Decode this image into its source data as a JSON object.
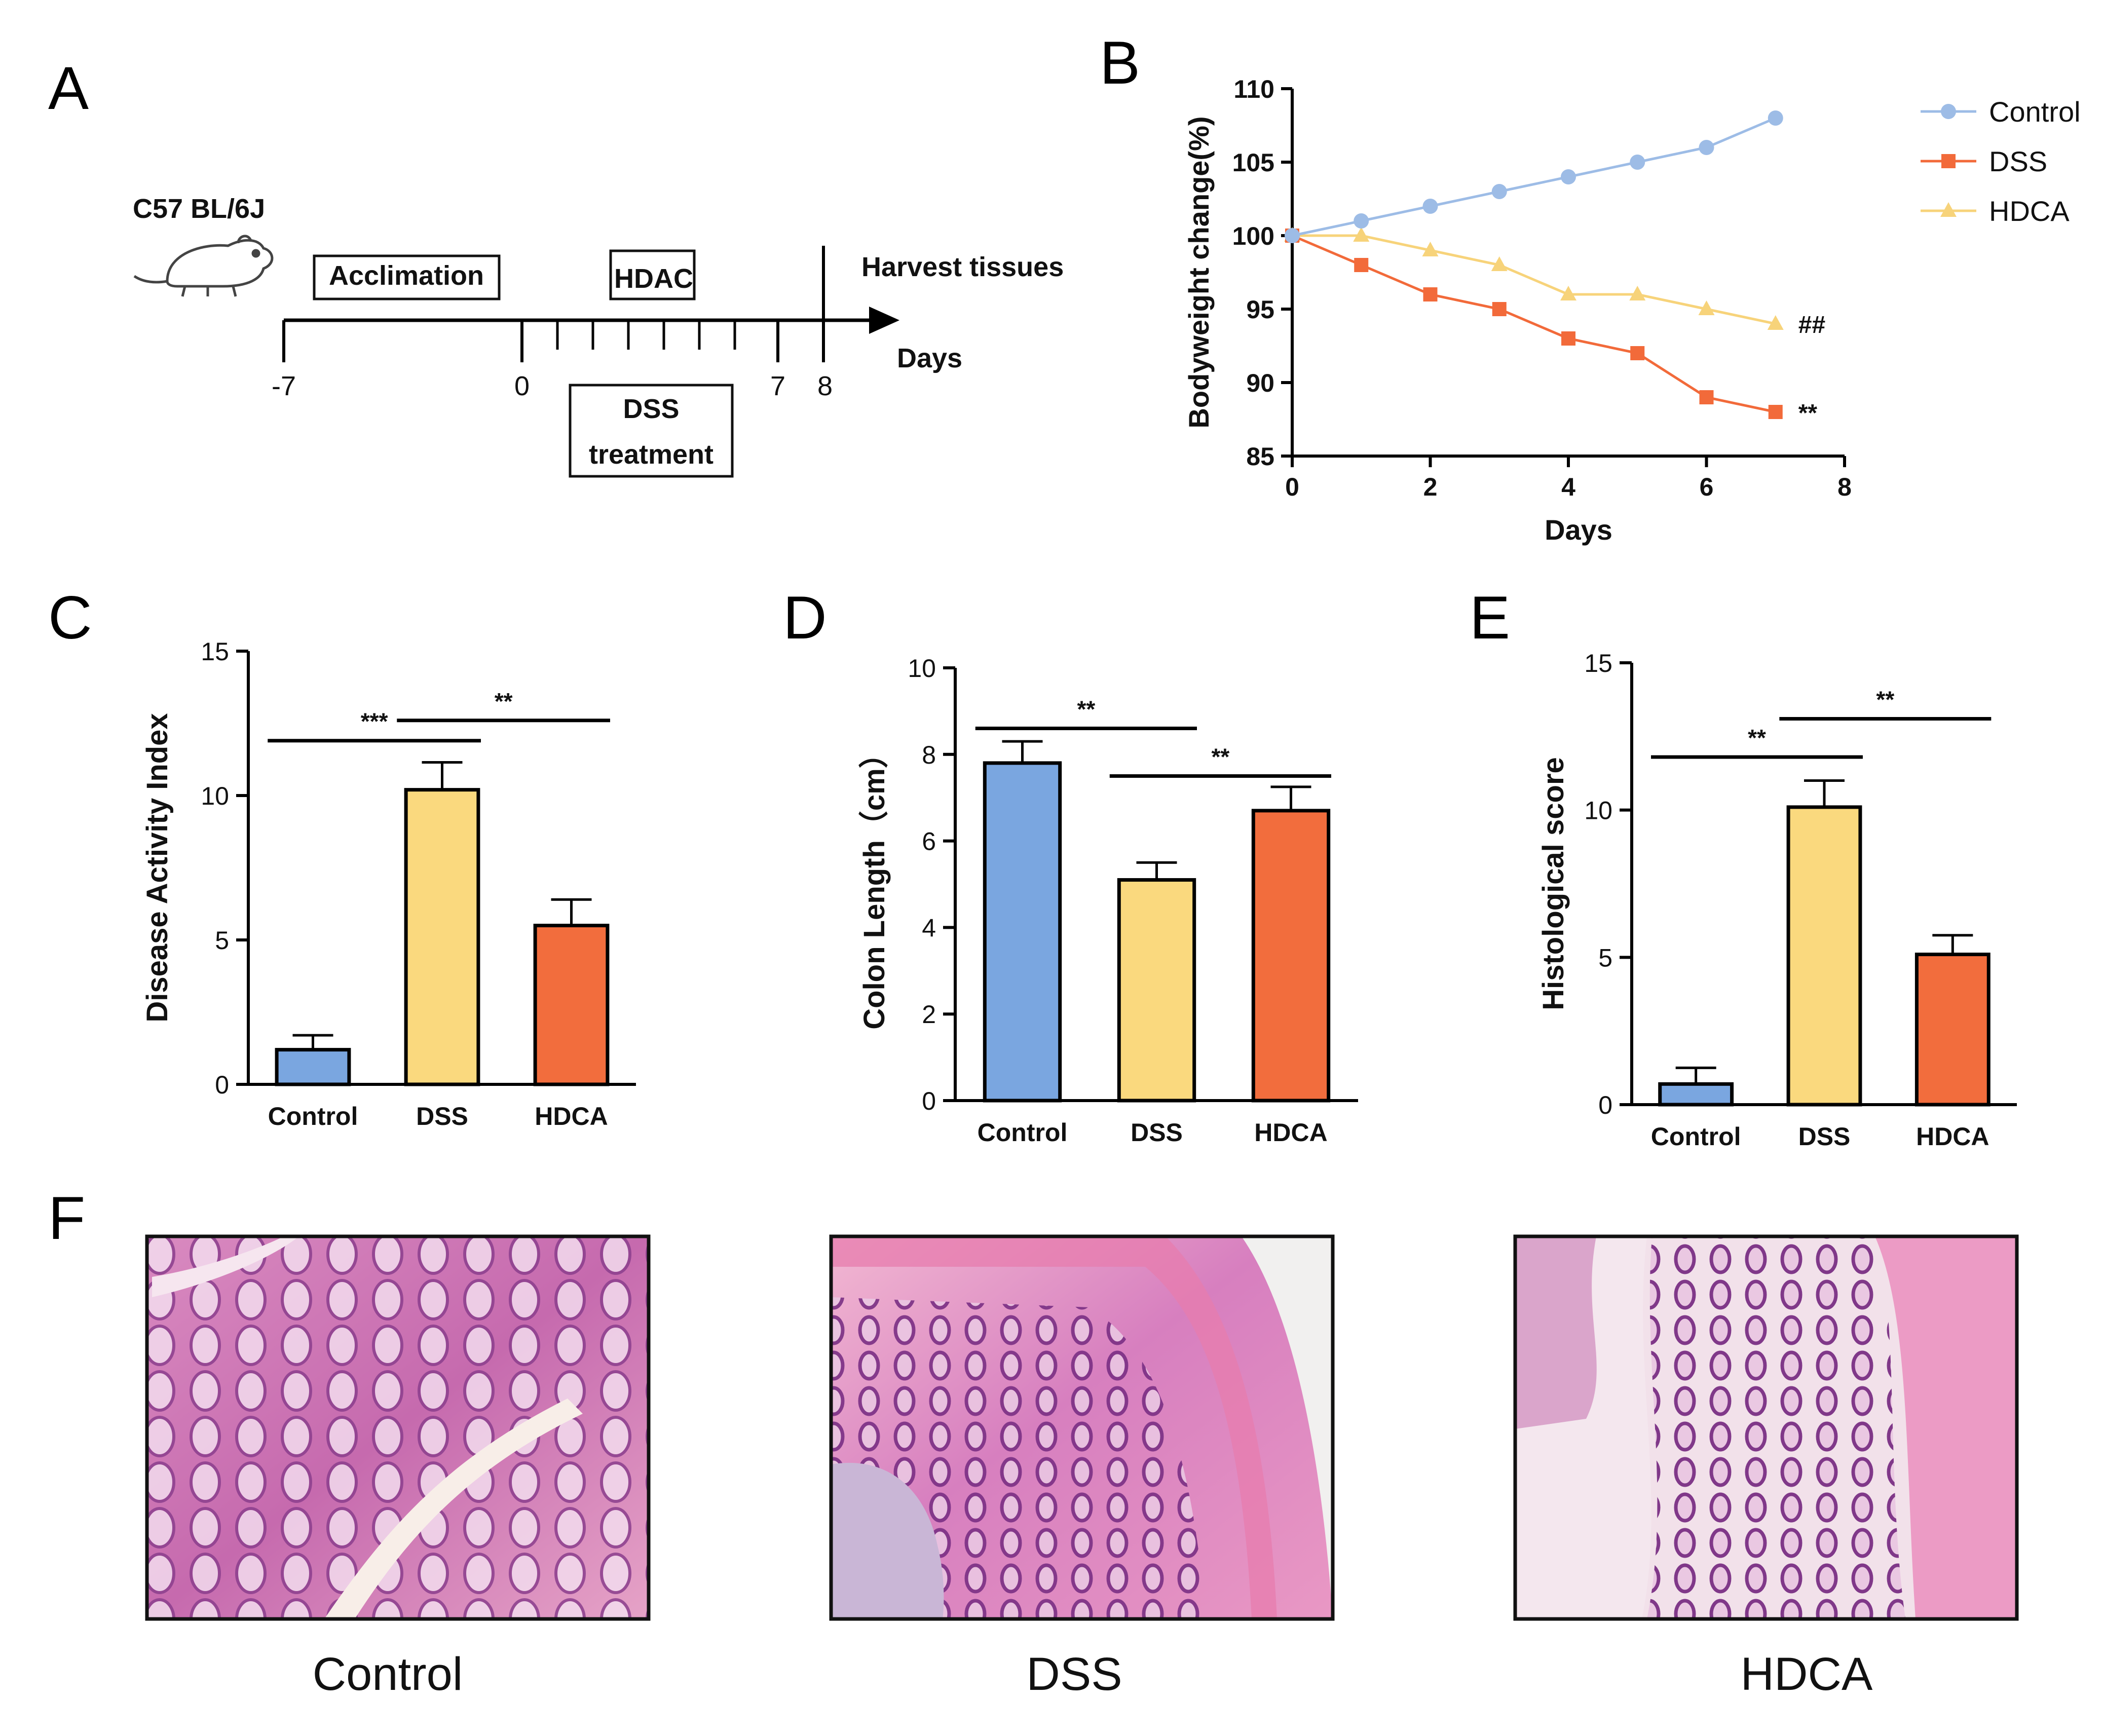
{
  "panels": {
    "a": "A",
    "b": "B",
    "c": "C",
    "d": "D",
    "e": "E",
    "f": "F"
  },
  "timeline": {
    "strain": "C57 BL/6J",
    "acclimation": "Acclimation",
    "hdac": "HDAC",
    "harvest": "Harvest tissues",
    "days_label": "Days",
    "dss_line1": "DSS",
    "dss_line2": "treatment",
    "ticks": {
      "t_minus7": "-7",
      "t0": "0",
      "t7": "7",
      "t8": "8"
    }
  },
  "histology": {
    "control": "Control",
    "dss": "DSS",
    "hdca": "HDCA"
  },
  "colors": {
    "control": "#7aa6e0",
    "dss_bar": "#fad97e",
    "hdca_bar": "#f26d3d",
    "line_control": "#9dbce6",
    "line_dss": "#f26a3a",
    "line_hdca": "#f7d37a"
  },
  "chart_data": [
    {
      "id": "B",
      "type": "line",
      "xlabel": "Days",
      "ylabel": "Bodyweight change(%)",
      "xlim": [
        0,
        8
      ],
      "ylim": [
        85,
        110
      ],
      "xticks": [
        "0",
        "2",
        "4",
        "6",
        "8"
      ],
      "yticks": [
        "85",
        "90",
        "95",
        "100",
        "105",
        "110"
      ],
      "legend_position": "top-right",
      "series": [
        {
          "name": "Control",
          "marker": "circle",
          "x": [
            0,
            1,
            2,
            3,
            4,
            5,
            6,
            7
          ],
          "y": [
            100,
            101,
            102,
            103,
            104,
            105,
            106,
            108
          ],
          "end_label": ""
        },
        {
          "name": "DSS",
          "marker": "square",
          "x": [
            0,
            1,
            2,
            3,
            4,
            5,
            6,
            7
          ],
          "y": [
            100,
            98,
            96,
            95,
            93,
            92,
            89,
            88
          ],
          "end_label": "**"
        },
        {
          "name": "HDCA",
          "marker": "triangle",
          "x": [
            0,
            1,
            2,
            3,
            4,
            5,
            6,
            7
          ],
          "y": [
            100,
            100,
            99,
            98,
            96,
            96,
            95,
            94
          ],
          "end_label": "##"
        }
      ]
    },
    {
      "id": "C",
      "type": "bar",
      "ylabel": "Disease Activity Index",
      "ylim": [
        0,
        15
      ],
      "yticks": [
        "0",
        "5",
        "10",
        "15"
      ],
      "categories": [
        "Control",
        "DSS",
        "HDCA"
      ],
      "values": [
        1.2,
        10.2,
        5.5
      ],
      "errors": [
        0.5,
        0.95,
        0.9
      ],
      "significance": [
        {
          "from": 0,
          "to": 1,
          "label": "***",
          "y": 11.9
        },
        {
          "from": 1,
          "to": 2,
          "label": "**",
          "y": 12.6
        }
      ]
    },
    {
      "id": "D",
      "type": "bar",
      "ylabel": "Colon Length（cm）",
      "ylim": [
        0,
        10
      ],
      "yticks": [
        "0",
        "2",
        "4",
        "6",
        "8",
        "10"
      ],
      "categories": [
        "Control",
        "DSS",
        "HDCA"
      ],
      "values": [
        7.8,
        5.1,
        6.7
      ],
      "errors": [
        0.5,
        0.4,
        0.55
      ],
      "significance": [
        {
          "from": 0,
          "to": 1,
          "label": "**",
          "y": 8.6
        },
        {
          "from": 1,
          "to": 2,
          "label": "**",
          "y": 7.5
        }
      ]
    },
    {
      "id": "E",
      "type": "bar",
      "ylabel": "Histological score",
      "ylim": [
        0,
        15
      ],
      "yticks": [
        "0",
        "5",
        "10",
        "15"
      ],
      "categories": [
        "Control",
        "DSS",
        "HDCA"
      ],
      "values": [
        0.7,
        10.1,
        5.1
      ],
      "errors": [
        0.55,
        0.9,
        0.65
      ],
      "significance": [
        {
          "from": 0,
          "to": 1,
          "label": "**",
          "y": 11.8
        },
        {
          "from": 1,
          "to": 2,
          "label": "**",
          "y": 13.1
        }
      ]
    }
  ]
}
